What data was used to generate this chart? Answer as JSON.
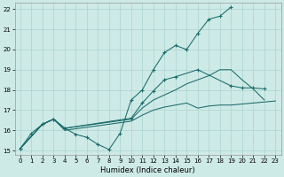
{
  "xlabel": "Humidex (Indice chaleur)",
  "xlim": [
    -0.5,
    23.5
  ],
  "ylim": [
    14.8,
    22.3
  ],
  "xticks": [
    0,
    1,
    2,
    3,
    4,
    5,
    6,
    7,
    8,
    9,
    10,
    11,
    12,
    13,
    14,
    15,
    16,
    17,
    18,
    19,
    20,
    21,
    22,
    23
  ],
  "yticks": [
    15,
    16,
    17,
    18,
    19,
    20,
    21,
    22
  ],
  "bg_color": "#ceeae6",
  "line_color": "#1a6b6b",
  "grid_color": "#aad4ce",
  "line1": {
    "x": [
      0,
      1,
      2,
      3,
      4,
      5,
      6,
      7,
      8,
      9,
      10,
      11,
      12,
      13,
      14,
      15,
      16,
      17,
      18,
      19
    ],
    "y": [
      15.1,
      15.85,
      16.3,
      16.55,
      16.1,
      15.8,
      15.65,
      15.3,
      15.05,
      15.85,
      17.5,
      18.0,
      19.0,
      19.85,
      20.2,
      20.0,
      20.8,
      21.5,
      21.65,
      22.1
    ]
  },
  "line2": {
    "x": [
      0,
      2,
      3,
      4,
      10,
      11,
      12,
      13,
      14,
      16,
      19,
      20,
      21,
      22
    ],
    "y": [
      15.1,
      16.3,
      16.55,
      16.1,
      16.6,
      17.35,
      17.95,
      18.5,
      18.65,
      19.0,
      18.2,
      18.1,
      18.1,
      18.05
    ]
  },
  "line3": {
    "x": [
      0,
      2,
      3,
      4,
      10,
      11,
      12,
      13,
      14,
      15,
      16,
      17,
      18,
      19,
      20,
      21,
      22,
      23
    ],
    "y": [
      15.1,
      16.3,
      16.55,
      16.0,
      16.45,
      16.75,
      17.0,
      17.15,
      17.25,
      17.35,
      17.1,
      17.2,
      17.25,
      17.25,
      17.3,
      17.35,
      17.4,
      17.45
    ]
  },
  "line4": {
    "x": [
      0,
      2,
      3,
      4,
      10,
      11,
      12,
      13,
      14,
      15,
      16,
      17,
      18,
      19,
      20,
      21,
      22
    ],
    "y": [
      15.1,
      16.3,
      16.55,
      16.1,
      16.55,
      17.1,
      17.5,
      17.75,
      18.0,
      18.3,
      18.5,
      18.7,
      19.0,
      19.0,
      18.5,
      18.05,
      17.5
    ]
  }
}
